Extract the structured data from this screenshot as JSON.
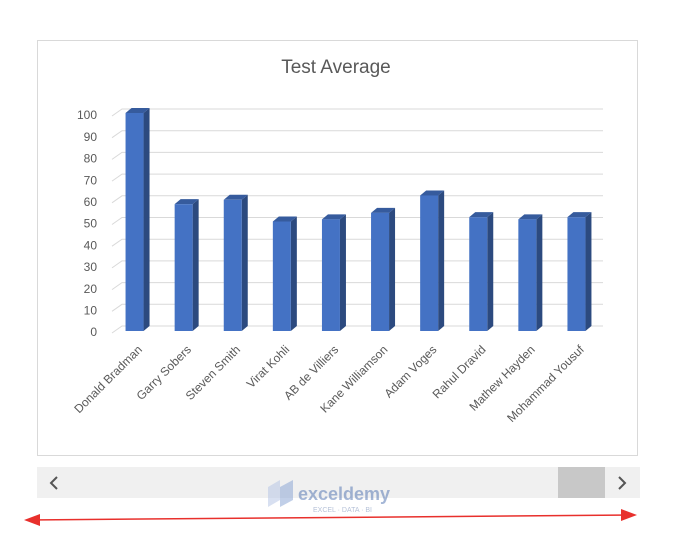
{
  "chart_data": {
    "type": "bar3d",
    "title": "Test Average",
    "categories": [
      "Donald Bradman",
      "Garry Sobers",
      "Steven Smith",
      "Virat Kohli",
      "AB de Villiers",
      "Kane Williamson",
      "Adam Voges",
      "Rahul Dravid",
      "Mathew Hayden",
      "Mohammad Yousuf"
    ],
    "values": [
      100,
      58,
      60,
      50,
      51,
      54,
      62,
      52,
      51,
      52
    ],
    "color": "#4472c4",
    "ylim": [
      0,
      100
    ],
    "yticks": [
      0,
      10,
      20,
      30,
      40,
      50,
      60,
      70,
      80,
      90,
      100
    ],
    "grid": true
  },
  "watermark": {
    "name": "exceldemy",
    "tagline": "EXCEL · DATA · BI"
  }
}
